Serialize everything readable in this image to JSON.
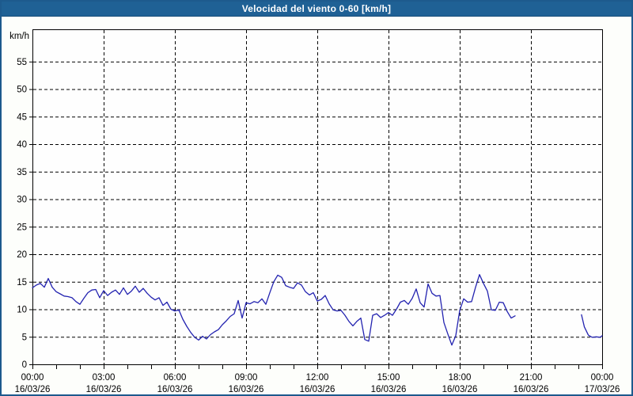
{
  "window": {
    "title": "Velocidad del viento 0-60 [km/h]"
  },
  "colors": {
    "titlebar_bg": "#1f6195",
    "window_border": "#1d5a8d",
    "page_bg": "#fdfefb",
    "plot_bg": "#fefefe",
    "axis": "#000000",
    "grid": "#000000",
    "line": "#2323b0",
    "text": "#000000",
    "title_text": "#ffffff"
  },
  "chart_data": {
    "type": "line",
    "title": "Velocidad del viento 0-60 [km/h]",
    "ylabel": "km/h",
    "xlabel": "",
    "ylim": [
      0,
      60
    ],
    "ytick_step": 5,
    "yticks": [
      0,
      5,
      10,
      15,
      20,
      25,
      30,
      35,
      40,
      45,
      50,
      55
    ],
    "x_hours_total": 24,
    "minor_xtick_every_hours": 1,
    "grid": "dashed",
    "legend": "none",
    "xticks": [
      {
        "hour": 0,
        "time": "00:00",
        "date": "16/03/26"
      },
      {
        "hour": 3,
        "time": "03:00",
        "date": "16/03/26"
      },
      {
        "hour": 6,
        "time": "06:00",
        "date": "16/03/26"
      },
      {
        "hour": 9,
        "time": "09:00",
        "date": "16/03/26"
      },
      {
        "hour": 12,
        "time": "12:00",
        "date": "16/03/26"
      },
      {
        "hour": 15,
        "time": "15:00",
        "date": "16/03/26"
      },
      {
        "hour": 18,
        "time": "18:00",
        "date": "16/03/26"
      },
      {
        "hour": 21,
        "time": "21:00",
        "date": "16/03/26"
      },
      {
        "hour": 24,
        "time": "00:00",
        "date": "17/03/26"
      }
    ],
    "series": [
      {
        "name": "wind-speed",
        "units": "km/h",
        "segments": [
          {
            "start_hour": 0,
            "step_minutes": 10,
            "values": [
              13.9,
              14.4,
              14.7,
              14.0,
              15.6,
              14.0,
              13.2,
              12.8,
              12.4,
              12.3,
              12.1,
              11.4,
              10.9,
              12.0,
              13.0,
              13.5,
              13.6,
              12.1,
              13.4,
              12.5,
              13.1,
              13.5,
              12.7,
              13.9,
              12.7,
              13.3,
              14.2,
              13.1,
              13.8,
              12.9,
              12.2,
              11.7,
              12.1,
              10.7,
              11.3,
              10.0,
              9.7,
              9.9,
              8.2,
              6.9,
              5.8,
              4.9,
              4.4,
              5.1,
              4.6,
              5.4,
              5.9,
              6.3,
              7.2,
              7.9,
              8.7,
              9.2,
              11.6,
              8.4,
              11.2,
              11.0,
              11.4,
              11.2,
              11.9,
              10.9,
              13.0,
              15.0,
              16.2,
              15.8,
              14.3,
              14.0,
              13.8,
              14.8,
              14.4,
              13.2,
              12.6,
              13.0,
              11.5,
              11.8,
              12.5,
              11.0,
              9.9,
              9.7,
              9.8,
              8.9,
              7.8,
              7.0,
              7.8,
              8.4,
              4.5,
              4.2,
              8.9,
              9.2,
              8.5,
              8.9,
              9.4,
              8.9,
              10.0,
              11.3,
              11.6,
              10.9,
              12.0,
              13.7,
              11.2,
              10.4,
              14.6,
              12.9,
              12.4,
              12.5,
              7.6,
              5.5,
              3.5,
              5.2,
              9.8,
              11.9,
              11.3,
              11.4,
              14.0,
              16.3,
              14.7,
              13.3,
              9.9,
              9.8,
              11.3,
              11.2,
              9.6,
              8.4,
              8.8
            ]
          },
          {
            "points": [
              [
                23.13,
                9.0
              ],
              [
                23.25,
                6.8
              ],
              [
                23.42,
                5.3
              ],
              [
                23.58,
                4.9
              ],
              [
                23.75,
                5.0
              ],
              [
                23.92,
                4.9
              ],
              [
                24.0,
                5.2
              ]
            ]
          }
        ]
      }
    ]
  }
}
